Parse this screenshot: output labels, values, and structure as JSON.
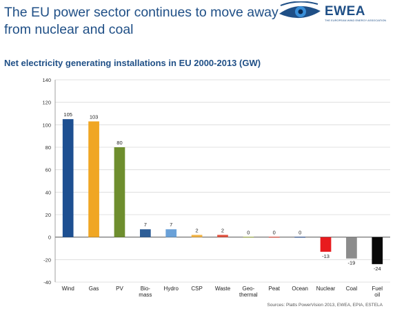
{
  "header": {
    "title": "The EU power sector continues to move away from nuclear and coal",
    "logo_text": "EWEA",
    "logo_subtext": "THE EUROPEAN WIND ENERGY ASSOCIATION"
  },
  "chart_data": {
    "type": "bar",
    "title": "Net electricity generating installations in EU 2000-2013 (GW)",
    "xlabel": "",
    "ylabel": "",
    "categories": [
      "Wind",
      "Gas",
      "PV",
      "Bio-\nmass",
      "Hydro",
      "CSP",
      "Waste",
      "Geo-\nthermal",
      "Peat",
      "Ocean",
      "Nuclear",
      "Coal",
      "Fuel\noil"
    ],
    "values": [
      105,
      103,
      80,
      7,
      7,
      2,
      2,
      0,
      0,
      0,
      -13,
      -19,
      -24
    ],
    "data_labels": [
      "105",
      "103",
      "80",
      "7",
      "7",
      "2",
      "2",
      "0",
      "0",
      "0",
      "-13",
      "-19",
      "-24"
    ],
    "bar_colors": [
      "#1d4f91",
      "#f0a623",
      "#6e8e2e",
      "#2e5e97",
      "#6aa1d8",
      "#f2b343",
      "#e0513e",
      "#9aa84a",
      "#d4483a",
      "#2d4f8a",
      "#e81b1e",
      "#8c8c8c",
      "#080808"
    ],
    "ylim": [
      -40,
      140
    ],
    "yticks": [
      -40,
      -20,
      0,
      20,
      40,
      60,
      80,
      100,
      120,
      140
    ],
    "grid": true,
    "source": "Sources: Platts PowerVision 2013, EWEA, EPIA, ESTELA"
  }
}
